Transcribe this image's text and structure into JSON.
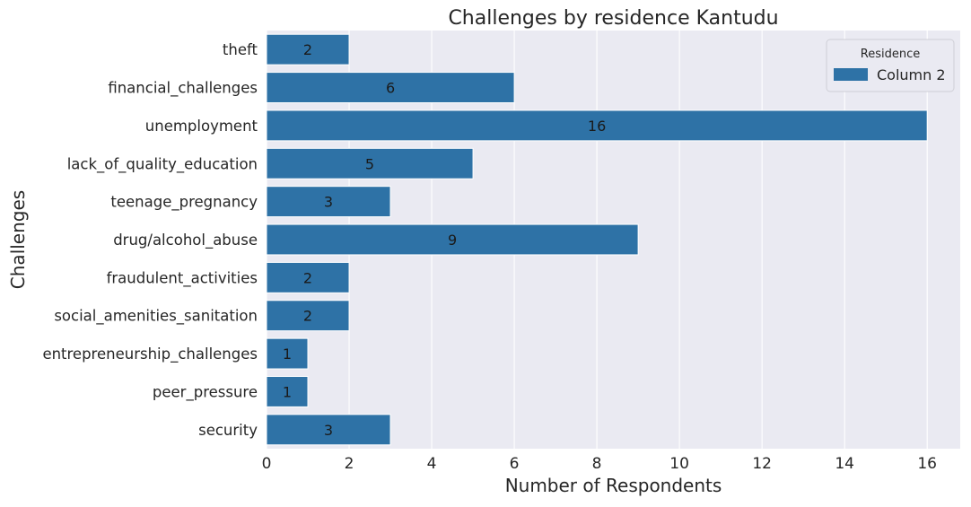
{
  "chart_data": {
    "type": "bar",
    "orientation": "horizontal",
    "title": "Challenges by residence Kantudu",
    "xlabel": "Number of Respondents",
    "ylabel": "Challenges",
    "categories": [
      "theft",
      "financial_challenges",
      "unemployment",
      "lack_of_quality_education",
      "teenage_pregnancy",
      "drug/alcohol_abuse",
      "fraudulent_activities",
      "social_amenities_sanitation",
      "entrepreneurship_challenges",
      "peer_pressure",
      "security"
    ],
    "series": [
      {
        "name": "Column 2",
        "values": [
          2,
          6,
          16,
          5,
          3,
          9,
          2,
          2,
          1,
          1,
          3
        ]
      }
    ],
    "xlim": [
      0,
      16.8
    ],
    "xticks": [
      "0",
      "2",
      "4",
      "6",
      "8",
      "10",
      "12",
      "14",
      "16"
    ],
    "grid": true,
    "legend": {
      "title": "Residence",
      "placement": "top-right"
    },
    "colors": {
      "bar": "#2e72a6",
      "plot_background": "#eaeaf2",
      "grid": "#ffffff",
      "text": "#262626",
      "label": "#1a1a1a"
    }
  }
}
